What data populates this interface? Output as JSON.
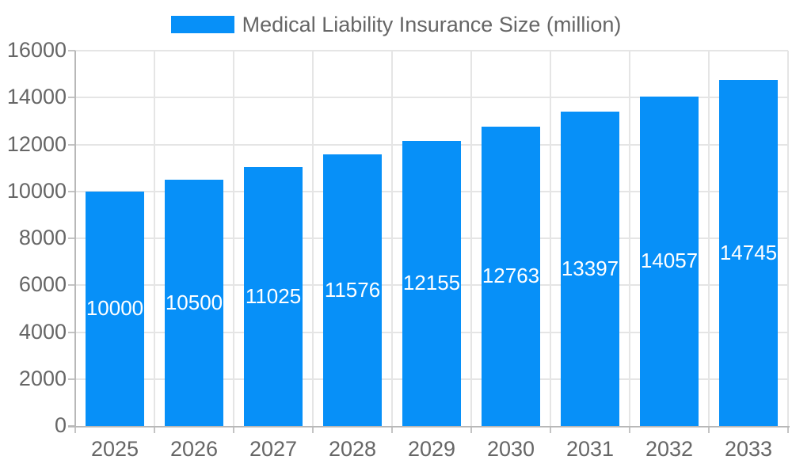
{
  "chart_data": {
    "type": "bar",
    "title": "",
    "legend": "Medical Liability Insurance Size (million)",
    "categories": [
      "2025",
      "2026",
      "2027",
      "2028",
      "2029",
      "2030",
      "2031",
      "2032",
      "2033"
    ],
    "values": [
      10000,
      10500,
      11025,
      11576,
      12155,
      12763,
      13397,
      14057,
      14745
    ],
    "xlabel": "",
    "ylabel": "",
    "ylim": [
      0,
      16000
    ],
    "ytick_step": 2000,
    "grid": true,
    "legend_position": "top",
    "bar_color": "#0790f8",
    "bar_label_color": "#ffffff",
    "axis_text_color": "#666666",
    "grid_color": "#e5e5e5",
    "axis_line_color": "#b8b8b8"
  }
}
